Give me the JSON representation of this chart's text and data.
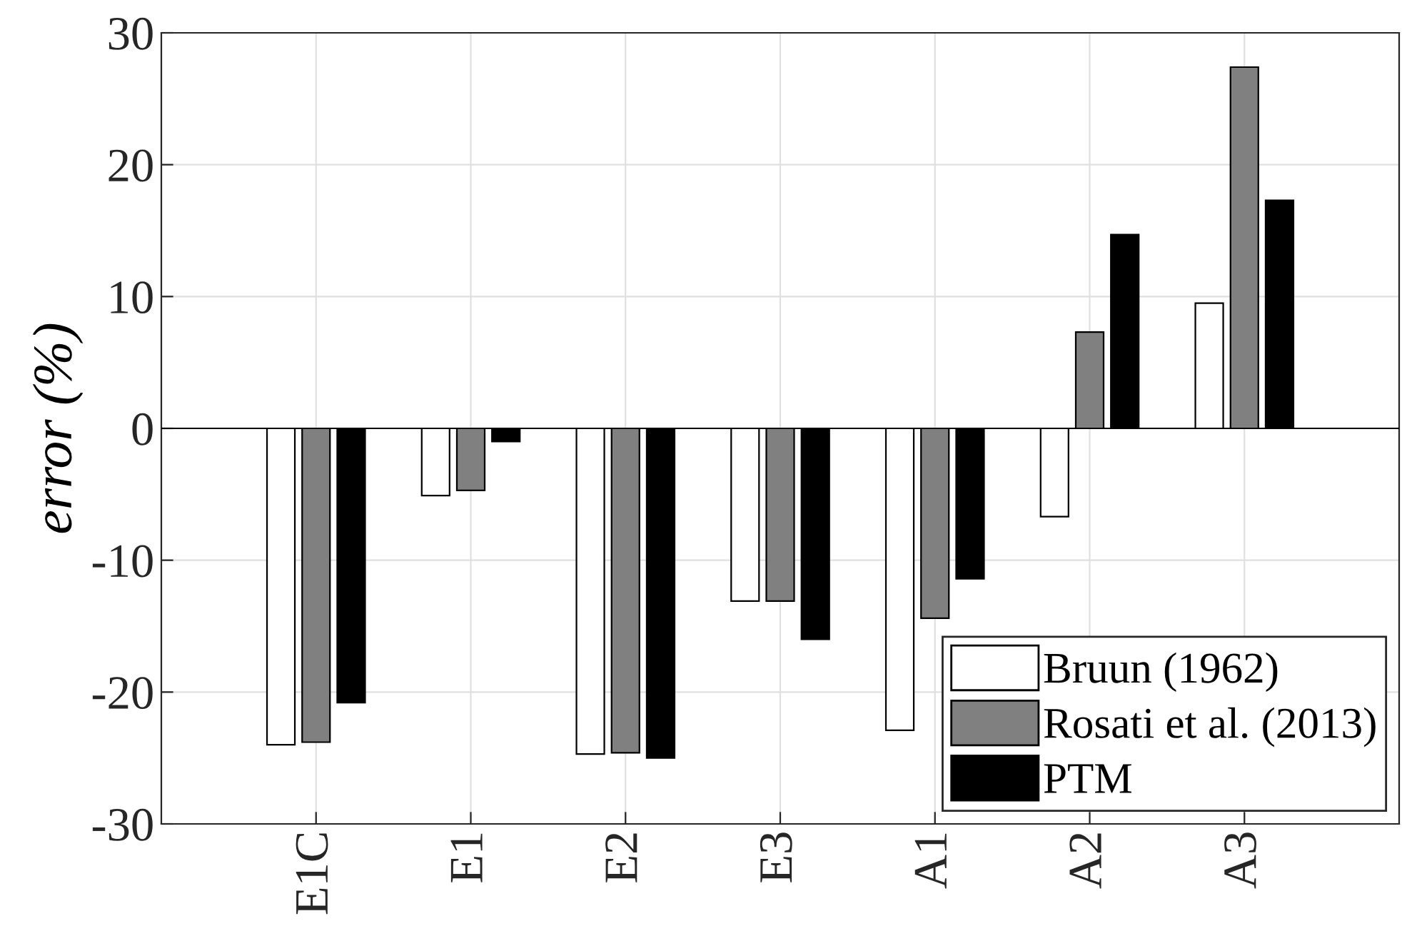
{
  "chart_data": {
    "type": "bar",
    "ylabel": "error (%)",
    "categories": [
      "E1C",
      "E1",
      "E2",
      "E3",
      "A1",
      "A2",
      "A3"
    ],
    "series": [
      {
        "name": "Bruun (1962)",
        "color": "#ffffff",
        "values": [
          -24.0,
          -5.1,
          -24.7,
          -13.1,
          -22.9,
          -6.7,
          9.5
        ]
      },
      {
        "name": "Rosati et al. (2013)",
        "color": "#808080",
        "values": [
          -23.8,
          -4.7,
          -24.6,
          -13.1,
          -14.4,
          7.3,
          27.4
        ]
      },
      {
        "name": "PTM",
        "color": "#000000",
        "values": [
          -20.8,
          -1.0,
          -25.0,
          -16.0,
          -11.4,
          14.7,
          17.3
        ]
      }
    ],
    "ylim": [
      -30,
      30
    ],
    "yticks": [
      -30,
      -20,
      -10,
      0,
      10,
      20,
      30
    ],
    "grid": true,
    "legend": "bottom right"
  }
}
